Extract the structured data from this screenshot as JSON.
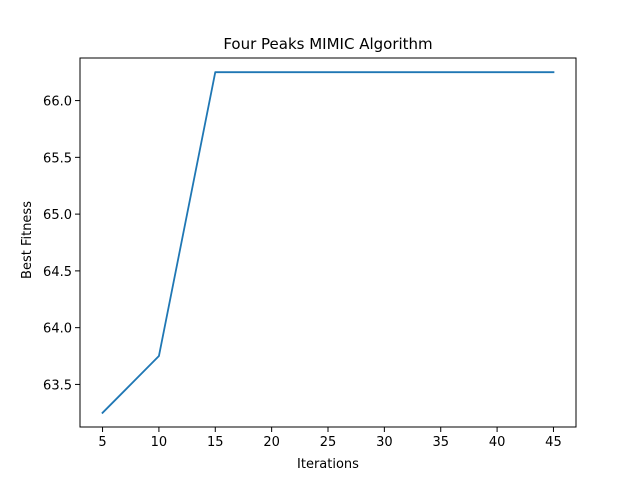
{
  "chart_data": {
    "type": "line",
    "title": "Four Peaks MIMIC Algorithm",
    "xlabel": "Iterations",
    "ylabel": "Best Fitness",
    "x": [
      5,
      10,
      15,
      20,
      25,
      30,
      35,
      40,
      45
    ],
    "series": [
      {
        "values": [
          63.25,
          63.75,
          66.25,
          66.25,
          66.25,
          66.25,
          66.25,
          66.25,
          66.25
        ],
        "color": "#1f77b4"
      }
    ],
    "xlim": [
      3,
      47
    ],
    "ylim": [
      63.125,
      66.375
    ],
    "xticks": [
      5,
      10,
      15,
      20,
      25,
      30,
      35,
      40,
      45
    ],
    "yticks": [
      63.5,
      64.0,
      64.5,
      65.0,
      65.5,
      66.0
    ],
    "ytick_labels": [
      "63.5",
      "64.0",
      "64.5",
      "65.0",
      "65.5",
      "66.0"
    ],
    "grid": false,
    "legend": "none"
  }
}
